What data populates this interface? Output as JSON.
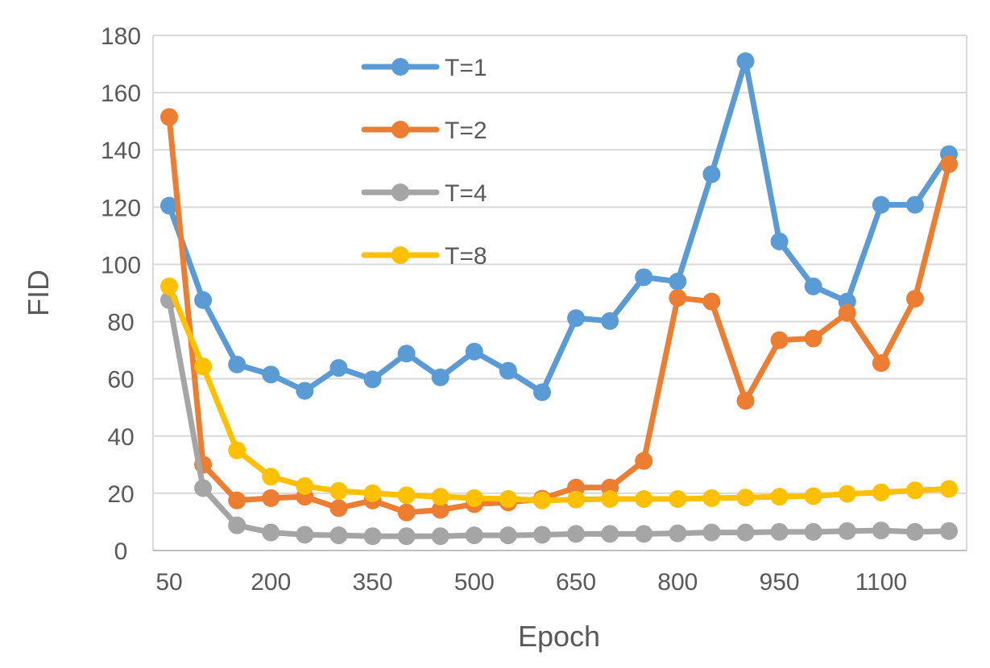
{
  "chart_data": {
    "type": "line",
    "title": "",
    "xlabel": "Epoch",
    "ylabel": "FID",
    "x": [
      50,
      100,
      150,
      200,
      250,
      300,
      350,
      400,
      450,
      500,
      550,
      600,
      650,
      700,
      750,
      800,
      850,
      900,
      950,
      1000,
      1050,
      1100,
      1150,
      1200
    ],
    "x_tick_labels": [
      "50",
      "200",
      "350",
      "500",
      "650",
      "800",
      "950",
      "1100"
    ],
    "y_tick_labels": [
      "0",
      "20",
      "40",
      "60",
      "80",
      "100",
      "120",
      "140",
      "160",
      "180"
    ],
    "ylim": [
      0,
      180
    ],
    "grid": true,
    "legend_position": "top-center",
    "series": [
      {
        "name": "T=1",
        "color": "#5B9BD5",
        "values": [
          120.5,
          87.5,
          65,
          61.5,
          55.8,
          63.8,
          59.8,
          68.8,
          60.5,
          69.5,
          62.8,
          55.3,
          81.2,
          80.2,
          95.5,
          94,
          131.5,
          171,
          108,
          92.3,
          87,
          120.8,
          120.8,
          138.5
        ]
      },
      {
        "name": "T=2",
        "color": "#ED7D31",
        "values": [
          151.5,
          30,
          17.5,
          18.3,
          18.8,
          14.8,
          17.5,
          13.3,
          14.2,
          16.2,
          16.8,
          18.1,
          22,
          22,
          31.3,
          88.3,
          87,
          52.3,
          73.5,
          74.1,
          83,
          65.5,
          88,
          135
        ]
      },
      {
        "name": "T=4",
        "color": "#A5A5A5",
        "values": [
          87.5,
          21.8,
          8.8,
          6.3,
          5.5,
          5.3,
          5.0,
          5.0,
          5.0,
          5.3,
          5.3,
          5.5,
          5.8,
          5.8,
          5.8,
          6.0,
          6.3,
          6.3,
          6.5,
          6.5,
          6.8,
          7.0,
          6.5,
          6.8
        ]
      },
      {
        "name": "T=8",
        "color": "#FFC000",
        "values": [
          92.3,
          64.3,
          35,
          25.8,
          22.5,
          20.8,
          20,
          19.3,
          18.8,
          18.3,
          18.0,
          17.5,
          17.8,
          18.0,
          18.0,
          18.0,
          18.3,
          18.5,
          18.8,
          19.0,
          19.8,
          20.3,
          21,
          21.5
        ]
      }
    ]
  }
}
